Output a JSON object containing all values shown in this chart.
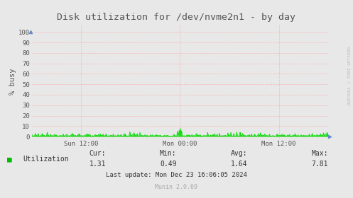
{
  "title": "Disk utilization for /dev/nvme2n1 - by day",
  "ylabel": "% busy",
  "yticks": [
    0,
    10,
    20,
    30,
    40,
    50,
    60,
    70,
    80,
    90,
    100
  ],
  "ylim": [
    -2,
    108
  ],
  "xtick_labels": [
    "Sun 12:00",
    "Mon 00:00",
    "Mon 12:00"
  ],
  "xtick_positions": [
    0.1667,
    0.5,
    0.8333
  ],
  "bg_color": "#e8e8e8",
  "grid_color_h": "#ffaaaa",
  "grid_color_v": "#ffaaaa",
  "line_color": "#00dd00",
  "fill_color": "#00dd00",
  "watermark": "RRDTOOL / TOBI OETIKER",
  "munin_version": "Munin 2.0.69",
  "legend_label": "Utilization",
  "legend_color": "#00bb00",
  "cur_label": "Cur:",
  "cur_val": "1.31",
  "min_label": "Min:",
  "min_val": "0.49",
  "avg_label": "Avg:",
  "avg_val": "1.64",
  "max_label": "Max:",
  "max_val": "7.81",
  "last_update": "Last update: Mon Dec 23 16:06:05 2024",
  "title_color": "#555555",
  "tick_label_color": "#555555",
  "stats_color": "#333333",
  "watermark_color": "#bbbbbb",
  "munin_color": "#aaaaaa",
  "n_points": 500,
  "figsize": [
    4.97,
    2.8
  ],
  "dpi": 100
}
